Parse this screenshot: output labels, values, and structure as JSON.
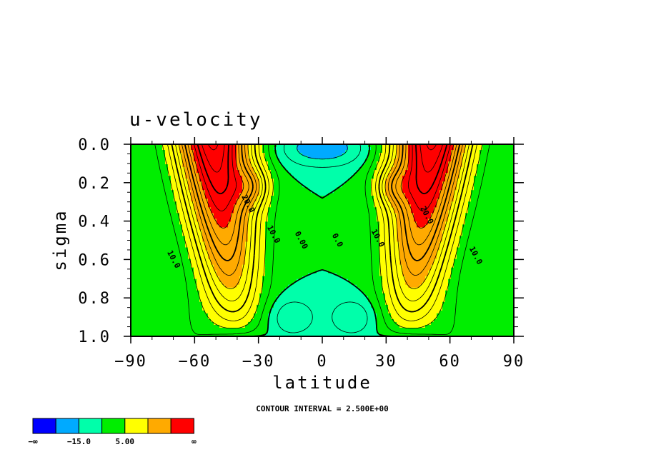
{
  "chart_data": {
    "type": "heatmap",
    "subtype": "filled-contour",
    "title": "u-velocity",
    "xlabel": "latitude",
    "ylabel": "sigma",
    "xlim": [
      -90,
      90
    ],
    "ylim": [
      1.0,
      0.0
    ],
    "y_axis_inverted": true,
    "x_ticks": [
      "−90",
      "−60",
      "−30",
      "0",
      "30",
      "60",
      "90"
    ],
    "x_tick_values": [
      -90,
      -60,
      -30,
      0,
      30,
      60,
      90
    ],
    "y_ticks": [
      "0.0",
      "0.2",
      "0.4",
      "0.6",
      "0.8",
      "1.0"
    ],
    "y_tick_values": [
      0.0,
      0.2,
      0.4,
      0.6,
      0.8,
      1.0
    ],
    "contour_interval_text": "CONTOUR INTERVAL = 2.500E+00",
    "contour_interval": 2.5,
    "contour_labels": [
      {
        "text": "20.0",
        "lat": -35,
        "sigma": 0.31
      },
      {
        "text": "10.0",
        "lat": -23,
        "sigma": 0.47
      },
      {
        "text": "0.00",
        "lat": -10,
        "sigma": 0.5
      },
      {
        "text": "10.0",
        "lat": -70,
        "sigma": 0.6
      },
      {
        "text": "0.0",
        "lat": 7,
        "sigma": 0.5
      },
      {
        "text": "10.0",
        "lat": 26,
        "sigma": 0.49
      },
      {
        "text": "20.0",
        "lat": 49,
        "sigma": 0.37
      },
      {
        "text": "10.0",
        "lat": 72,
        "sigma": 0.58
      }
    ],
    "jets": [
      {
        "lat": -52,
        "sigma": 0.0,
        "max_approx": 40
      },
      {
        "lat": 52,
        "sigma": 0.0,
        "max_approx": 40
      }
    ],
    "colorbar": {
      "colors": [
        "#0000ff",
        "#00aaff",
        "#00ffaa",
        "#00ee00",
        "#ffff00",
        "#ffaa00",
        "#ff0000"
      ],
      "labels": [
        "−∞",
        "−15.0",
        "5.00",
        "∞"
      ]
    }
  }
}
